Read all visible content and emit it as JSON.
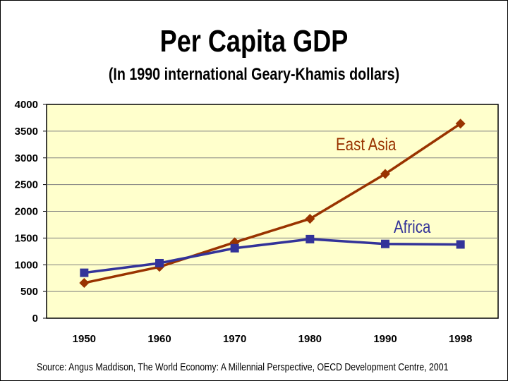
{
  "header": {
    "title": "Per Capita GDP",
    "subtitle": "(In 1990 international Geary-Khamis dollars)"
  },
  "footer": {
    "source": "Source: Angus Maddison, The World Economy: A Millennial Perspective, OECD Development Centre, 2001"
  },
  "chart_data": {
    "type": "line",
    "title": "Per Capita GDP",
    "subtitle": "(In 1990 international Geary-Khamis dollars)",
    "xlabel": "",
    "ylabel": "",
    "categories": [
      "1950",
      "1960",
      "1970",
      "1980",
      "1990",
      "1998"
    ],
    "ylim": [
      0,
      4000
    ],
    "yticks": [
      0,
      500,
      1000,
      1500,
      2000,
      2500,
      3000,
      3500,
      4000
    ],
    "grid": true,
    "legend": "inline labels",
    "series": [
      {
        "name": "East Asia",
        "marker": "diamond",
        "color": "#993300",
        "values": [
          660,
          960,
          1420,
          1860,
          2700,
          3640
        ]
      },
      {
        "name": "Africa",
        "marker": "square",
        "color": "#333399",
        "values": [
          850,
          1030,
          1310,
          1480,
          1390,
          1380
        ]
      }
    ],
    "plot_background": "#ffffcc"
  }
}
